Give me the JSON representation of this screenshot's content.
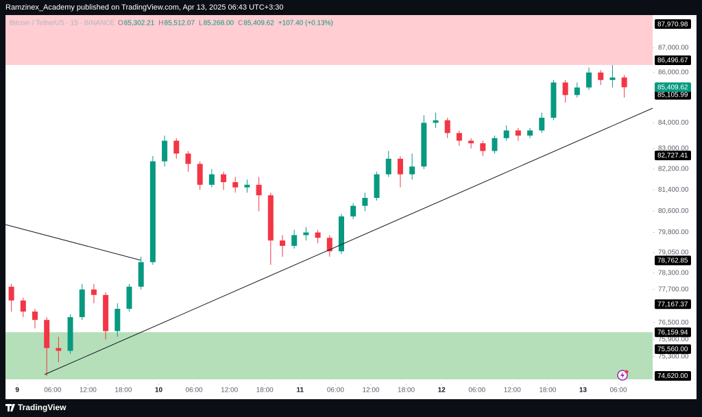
{
  "top_bar": {
    "text": "Ramzinex_Academy published on TradingView.com, Apr 13, 2025 06:43 UTC+3:30"
  },
  "footer": {
    "brand": "TradingView"
  },
  "chart_data": {
    "type": "candlestick",
    "symbol": "Bitcoin / TetherUS · 15 · BINANCE",
    "ohlc_legend": [
      {
        "label": "O",
        "value": "85,302.21"
      },
      {
        "label": "H",
        "value": "85,512.07"
      },
      {
        "label": "L",
        "value": "85,268.00"
      },
      {
        "label": "C",
        "value": "85,409.62"
      },
      {
        "label": "",
        "value": "+107.40 (+0.13%)"
      }
    ],
    "up_color": "#089981",
    "down_color": "#f23645",
    "log_scale": true,
    "grid": false,
    "xlim": [
      -2,
      107
    ],
    "ylim": [
      74500,
      88400
    ],
    "xticks": [
      {
        "value": 0,
        "label": "9"
      },
      {
        "value": 6,
        "label": "06:00"
      },
      {
        "value": 12,
        "label": "12:00"
      },
      {
        "value": 18,
        "label": "18:00"
      },
      {
        "value": 24,
        "label": "10"
      },
      {
        "value": 30,
        "label": "06:00"
      },
      {
        "value": 36,
        "label": "12:00"
      },
      {
        "value": 42,
        "label": "18:00"
      },
      {
        "value": 48,
        "label": "11"
      },
      {
        "value": 54,
        "label": "06:00"
      },
      {
        "value": 60,
        "label": "12:00"
      },
      {
        "value": 66,
        "label": "18:00"
      },
      {
        "value": 72,
        "label": "12"
      },
      {
        "value": 78,
        "label": "06:00"
      },
      {
        "value": 84,
        "label": "12:00"
      },
      {
        "value": 90,
        "label": "18:00"
      },
      {
        "value": 96,
        "label": "13"
      },
      {
        "value": 102,
        "label": "06:00"
      }
    ],
    "yticks": [
      {
        "value": 87000,
        "label": "87,000.00"
      },
      {
        "value": 86000,
        "label": "86,000.00"
      },
      {
        "value": 84000,
        "label": "84,000.00"
      },
      {
        "value": 83000,
        "label": "83,000.00"
      },
      {
        "value": 82200,
        "label": "82,200.00"
      },
      {
        "value": 81400,
        "label": "81,400.00"
      },
      {
        "value": 80600,
        "label": "80,600.00"
      },
      {
        "value": 79800,
        "label": "79,800.00"
      },
      {
        "value": 79050,
        "label": "79,050.00"
      },
      {
        "value": 78300,
        "label": "78,300.00"
      },
      {
        "value": 77700,
        "label": "77,700.00"
      },
      {
        "value": 76500,
        "label": "76,500.00"
      },
      {
        "value": 75900,
        "label": "75,900.00"
      },
      {
        "value": 75300,
        "label": "75,300.00"
      }
    ],
    "price_labels": [
      {
        "value": 87970.98,
        "label": "87,970.98"
      },
      {
        "value": 86496.67,
        "label": "86,496.67"
      },
      {
        "value": 85105.99,
        "label": "85,105.99"
      },
      {
        "value": 82727.41,
        "label": "82,727.41"
      },
      {
        "value": 78762.85,
        "label": "78,762.85"
      },
      {
        "value": 77167.37,
        "label": "77,167.37"
      },
      {
        "value": 76159.94,
        "label": "76,159.94"
      },
      {
        "value": 75560.0,
        "label": "75,560.00"
      },
      {
        "value": 74620.0,
        "label": "74,620.00"
      }
    ],
    "current_price": {
      "value": 85409.62,
      "label": "85,409.62",
      "color": "#089981"
    },
    "zones": [
      {
        "color": "#ffcdd2",
        "low": 86496.67,
        "high": 87970.98
      },
      {
        "color": "#b5dfb9",
        "low": 74620,
        "high": 76159.94
      }
    ],
    "x": [
      -1,
      1,
      3,
      5,
      7,
      9,
      11,
      13,
      15,
      17,
      19,
      21,
      23,
      25,
      27,
      29,
      31,
      33,
      35,
      37,
      39,
      41,
      43,
      45,
      47,
      49,
      51,
      53,
      55,
      57,
      59,
      61,
      63,
      65,
      67,
      69,
      71,
      73,
      75,
      77,
      79,
      81,
      83,
      85,
      87,
      89,
      91,
      93,
      95,
      97,
      99,
      101,
      103
    ],
    "open": [
      77800,
      77300,
      76900,
      76600,
      75600,
      75500,
      76700,
      77700,
      77500,
      76200,
      77000,
      77800,
      78700,
      82500,
      83300,
      82800,
      82400,
      81600,
      82000,
      81700,
      81500,
      81600,
      81200,
      79500,
      79300,
      79700,
      79800,
      79600,
      79100,
      80400,
      80800,
      81100,
      82000,
      82600,
      82000,
      82300,
      84000,
      84100,
      83600,
      83300,
      83200,
      82900,
      83400,
      83700,
      83500,
      83700,
      84200,
      85600,
      85100,
      85400,
      86000,
      85700,
      85800
    ],
    "high": [
      77900,
      77400,
      77000,
      76700,
      76000,
      76800,
      77900,
      77900,
      77600,
      77200,
      77900,
      78900,
      82700,
      83500,
      83400,
      82900,
      82500,
      82200,
      82100,
      81900,
      81800,
      81900,
      81300,
      79700,
      79900,
      80000,
      79900,
      79700,
      80500,
      80900,
      81300,
      82100,
      82900,
      82700,
      82800,
      84300,
      84400,
      84200,
      83700,
      83400,
      83300,
      83500,
      83900,
      83800,
      83800,
      84400,
      85700,
      85700,
      85600,
      86200,
      86100,
      86300,
      85900
    ],
    "low": [
      76900,
      76700,
      76300,
      74620,
      75100,
      75400,
      76600,
      77200,
      75900,
      76000,
      76900,
      77700,
      78600,
      82300,
      82600,
      82100,
      81400,
      81500,
      81400,
      81300,
      81300,
      80600,
      78600,
      78900,
      79200,
      79500,
      79400,
      78900,
      79000,
      80300,
      80600,
      81000,
      81900,
      81500,
      81800,
      82200,
      83800,
      83400,
      83100,
      83000,
      82700,
      82800,
      83300,
      83300,
      83400,
      83600,
      84100,
      84800,
      85000,
      85300,
      85500,
      85400,
      85000
    ],
    "close": [
      77300,
      76900,
      76600,
      75600,
      75500,
      76700,
      77700,
      77500,
      76200,
      77000,
      77800,
      78700,
      82500,
      83300,
      82800,
      82400,
      81600,
      82000,
      81700,
      81500,
      81600,
      81200,
      79500,
      79300,
      79700,
      79800,
      79600,
      79100,
      80400,
      80800,
      81100,
      82000,
      82600,
      82000,
      82300,
      84000,
      84100,
      83600,
      83300,
      83200,
      82900,
      83400,
      83700,
      83500,
      83700,
      84200,
      85600,
      85100,
      85400,
      86000,
      85700,
      85800,
      85409.62
    ]
  }
}
